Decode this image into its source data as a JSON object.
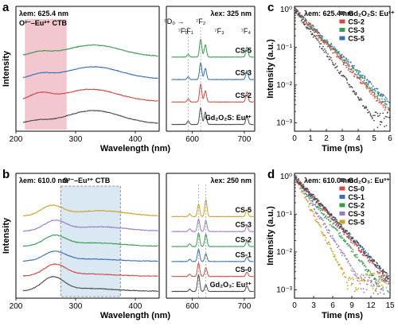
{
  "chart_data": [
    {
      "panel": "a",
      "type": "line",
      "xlabel": "Wavelength (nm)",
      "ylabel": "Intensity",
      "xlim": [
        200,
        720
      ],
      "xbreak": [
        440,
        550
      ],
      "xticks": [
        200,
        300,
        400,
        600,
        700
      ],
      "left_label": "λem: 625.4 nm",
      "left_label2": "O²⁻–Eu³⁺ CTB",
      "right_label": "λex: 325 nm",
      "shaded_band": [
        215,
        285
      ],
      "shaded_color": "#f2c7cf",
      "transition_labels": [
        {
          "text": "⁵D₀ →",
          "x": 565
        },
        {
          "text": "⁷F₀",
          "x": 582
        },
        {
          "text": "⁷F₁",
          "x": 593
        },
        {
          "text": "⁷F₂",
          "x": 616
        },
        {
          "text": "⁷F₃",
          "x": 652
        },
        {
          "text": "⁷F₄",
          "x": 703
        }
      ],
      "series": [
        {
          "name": "CS-5",
          "color": "#3a9a52",
          "offset": 3,
          "excitation": {
            "peaks": [
              [
                240,
                0.18
              ],
              [
                330,
                0.52
              ]
            ],
            "base": 0.04
          },
          "emission": {
            "peaks": [
              [
                592,
                0.12
              ],
              [
                616,
                0.8
              ],
              [
                625,
                0.55
              ],
              [
                705,
                0.45
              ]
            ]
          }
        },
        {
          "name": "CS-3",
          "color": "#3a6fb5",
          "offset": 2,
          "excitation": {
            "peaks": [
              [
                242,
                0.2
              ],
              [
                330,
                0.55
              ]
            ],
            "base": 0.04
          },
          "emission": {
            "peaks": [
              [
                592,
                0.12
              ],
              [
                616,
                0.75
              ],
              [
                625,
                0.5
              ],
              [
                705,
                0.4
              ]
            ]
          }
        },
        {
          "name": "CS-2",
          "color": "#d04a45",
          "offset": 1,
          "excitation": {
            "peaks": [
              [
                240,
                0.32
              ],
              [
                325,
                0.55
              ]
            ],
            "base": 0.04
          },
          "emission": {
            "peaks": [
              [
                592,
                0.14
              ],
              [
                616,
                0.8
              ],
              [
                625,
                0.5
              ],
              [
                705,
                0.45
              ]
            ]
          }
        },
        {
          "name": "Gd₂O₂S: Eu³⁺",
          "color": "#4a4a4a",
          "offset": 0,
          "excitation": {
            "peaks": [
              [
                235,
                0.12
              ],
              [
                330,
                0.6
              ]
            ],
            "base": 0.04
          },
          "emission": {
            "peaks": [
              [
                592,
                0.15
              ],
              [
                616,
                0.75
              ],
              [
                625,
                0.55
              ],
              [
                705,
                0.4
              ]
            ]
          }
        }
      ]
    },
    {
      "panel": "b",
      "type": "line",
      "xlabel": "Wavelength (nm)",
      "ylabel": "Intensity",
      "xlim": [
        200,
        720
      ],
      "xbreak": [
        440,
        550
      ],
      "xticks": [
        200,
        300,
        400,
        600,
        700
      ],
      "left_label": "λem: 610.0 nm",
      "right_label": "λex: 250 nm",
      "band_label": "S²⁻–Eu³⁺ CTB",
      "shaded_band": [
        275,
        375
      ],
      "shaded_color": "#d9e8f3",
      "series": [
        {
          "name": "CS-5",
          "color": "#c9a227",
          "offset": 5,
          "excitation": {
            "peaks": [
              [
                260,
                0.45
              ],
              [
                340,
                0.25
              ]
            ],
            "base": 0.03
          },
          "emission": {
            "peaks": [
              [
                595,
                0.12
              ],
              [
                612,
                0.55
              ],
              [
                626,
                0.75
              ],
              [
                705,
                0.3
              ]
            ]
          }
        },
        {
          "name": "CS-3",
          "color": "#9a7bc4",
          "offset": 4,
          "excitation": {
            "peaks": [
              [
                265,
                0.45
              ],
              [
                340,
                0.2
              ]
            ],
            "base": 0.03
          },
          "emission": {
            "peaks": [
              [
                595,
                0.12
              ],
              [
                612,
                0.55
              ],
              [
                626,
                0.5
              ],
              [
                705,
                0.25
              ]
            ]
          }
        },
        {
          "name": "CS-2",
          "color": "#3a9a52",
          "offset": 3,
          "excitation": {
            "peaks": [
              [
                265,
                0.45
              ],
              [
                330,
                0.15
              ]
            ],
            "base": 0.03
          },
          "emission": {
            "peaks": [
              [
                595,
                0.12
              ],
              [
                612,
                0.6
              ],
              [
                626,
                0.55
              ],
              [
                705,
                0.25
              ]
            ]
          }
        },
        {
          "name": "CS-1",
          "color": "#3a6fb5",
          "offset": 2,
          "excitation": {
            "peaks": [
              [
                265,
                0.4
              ],
              [
                320,
                0.1
              ]
            ],
            "base": 0.03
          },
          "emission": {
            "peaks": [
              [
                595,
                0.1
              ],
              [
                612,
                0.55
              ],
              [
                626,
                0.35
              ],
              [
                705,
                0.2
              ]
            ]
          }
        },
        {
          "name": "CS-0",
          "color": "#d04a45",
          "offset": 1,
          "excitation": {
            "peaks": [
              [
                265,
                0.5
              ],
              [
                320,
                0.1
              ]
            ],
            "base": 0.03
          },
          "emission": {
            "peaks": [
              [
                595,
                0.1
              ],
              [
                612,
                0.6
              ],
              [
                626,
                0.4
              ],
              [
                705,
                0.2
              ]
            ]
          }
        },
        {
          "name": "Gd₂O₃: Eu³⁺",
          "color": "#4a4a4a",
          "offset": 0,
          "excitation": {
            "peaks": [
              [
                262,
                0.6
              ],
              [
                320,
                0.12
              ]
            ],
            "base": 0.03
          },
          "emission": {
            "peaks": [
              [
                595,
                0.1
              ],
              [
                612,
                0.75
              ],
              [
                626,
                0.3
              ],
              [
                705,
                0.25
              ]
            ]
          }
        }
      ]
    },
    {
      "panel": "c",
      "type": "scatter",
      "xlabel": "Time (ms)",
      "ylabel": "Intensity (a.u.)",
      "xlim": [
        0,
        6
      ],
      "ylim": [
        0.0006,
        1.2
      ],
      "yscale": "log",
      "xticks": [
        0,
        1,
        2,
        3,
        4,
        5,
        6
      ],
      "yticks": [
        0.001,
        0.01,
        0.1,
        1
      ],
      "ytick_labels": [
        "10⁻³",
        "10⁻²",
        "10⁻¹",
        "10⁰"
      ],
      "title": "λem: 625.4 nm",
      "series": [
        {
          "name": "Gd₂O₂S: Eu³⁺",
          "color": "#4a4a4a",
          "tau": 0.75,
          "floor": 0.0012
        },
        {
          "name": "CS-2",
          "color": "#d04a45",
          "tau": 0.95,
          "floor": 0.0014
        },
        {
          "name": "CS-3",
          "color": "#3a9a52",
          "tau": 1.0,
          "floor": 0.0016
        },
        {
          "name": "CS-5",
          "color": "#3a6fb5",
          "tau": 1.05,
          "floor": 0.0018
        }
      ]
    },
    {
      "panel": "d",
      "type": "scatter",
      "xlabel": "Time (ms)",
      "ylabel": "Intensity (a.u.)",
      "xlim": [
        0,
        15
      ],
      "ylim": [
        0.0006,
        1.2
      ],
      "yscale": "log",
      "xticks": [
        0,
        3,
        6,
        9,
        12,
        15
      ],
      "yticks": [
        0.001,
        0.01,
        0.1,
        1
      ],
      "ytick_labels": [
        "10⁻³",
        "10⁻²",
        "10⁻¹",
        "10⁰"
      ],
      "title": "λem: 610.0 nm",
      "series": [
        {
          "name": "Gd₂O₃: Eu³⁺",
          "color": "#4a4a4a",
          "tau": 2.4,
          "floor": 0.0012
        },
        {
          "name": "CS-0",
          "color": "#d04a45",
          "tau": 2.3,
          "floor": 0.0013
        },
        {
          "name": "CS-1",
          "color": "#3a6fb5",
          "tau": 2.4,
          "floor": 0.0014
        },
        {
          "name": "CS-2",
          "color": "#3a9a52",
          "tau": 2.0,
          "floor": 0.0015
        },
        {
          "name": "CS-3",
          "color": "#9a7bc4",
          "tau": 1.6,
          "floor": 0.0016
        },
        {
          "name": "CS-5",
          "color": "#c9a227",
          "tau": 1.3,
          "floor": 0.0017
        }
      ]
    }
  ]
}
